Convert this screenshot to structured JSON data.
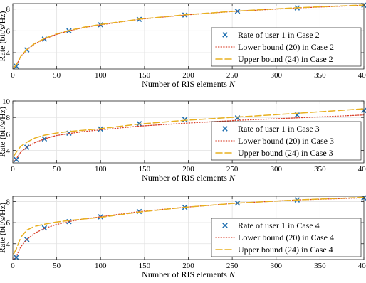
{
  "chart_data": [
    {
      "type": "line",
      "xlabel": "Number of RIS elements",
      "xlabel_var": "N",
      "ylabel": "Rate (bit/s/Hz)",
      "xlim": [
        0,
        400
      ],
      "ylim": [
        2.5,
        8.5
      ],
      "xticks": [
        0,
        50,
        100,
        150,
        200,
        250,
        300,
        350,
        400
      ],
      "yticks": [
        4,
        6,
        8
      ],
      "grid": true,
      "legend_position": "lower-right",
      "series": [
        {
          "name": "Rate of user 1 in Case 2",
          "style": "marker-x",
          "color": "#1f6fb0",
          "x": [
            4,
            16,
            36,
            64,
            100,
            144,
            196,
            256,
            324,
            400
          ],
          "y": [
            2.75,
            4.25,
            5.25,
            6.0,
            6.55,
            7.05,
            7.45,
            7.8,
            8.1,
            8.35
          ]
        },
        {
          "name": "Lower bound (20) in Case 2",
          "style": "dotted",
          "color": "#d9412b",
          "x": [
            1,
            4,
            9,
            16,
            25,
            36,
            49,
            64,
            81,
            100,
            144,
            196,
            256,
            324,
            400
          ],
          "y": [
            2.55,
            2.85,
            3.6,
            4.25,
            4.8,
            5.25,
            5.65,
            6.0,
            6.3,
            6.55,
            7.05,
            7.45,
            7.8,
            8.1,
            8.35
          ]
        },
        {
          "name": "Upper bound (24) in Case 2",
          "style": "dashed",
          "color": "#e8b020",
          "x": [
            1,
            4,
            9,
            16,
            25,
            36,
            49,
            64,
            81,
            100,
            144,
            196,
            256,
            324,
            400
          ],
          "y": [
            2.6,
            2.9,
            3.65,
            4.3,
            4.85,
            5.3,
            5.7,
            6.03,
            6.33,
            6.58,
            7.07,
            7.47,
            7.82,
            8.12,
            8.37
          ]
        }
      ]
    },
    {
      "type": "line",
      "xlabel": "Number of RIS elements",
      "xlabel_var": "N",
      "ylabel": "Rate (bit/s/Hz)",
      "xlim": [
        0,
        400
      ],
      "ylim": [
        2.5,
        10
      ],
      "xticks": [
        0,
        50,
        100,
        150,
        200,
        250,
        300,
        350,
        400
      ],
      "yticks": [
        4,
        6,
        8,
        10
      ],
      "grid": true,
      "legend_position": "lower-right",
      "series": [
        {
          "name": "Rate of user 1 in Case 3",
          "style": "marker-x",
          "color": "#1f6fb0",
          "x": [
            4,
            16,
            36,
            64,
            100,
            144,
            196,
            256,
            324,
            400
          ],
          "y": [
            2.9,
            4.4,
            5.4,
            6.1,
            6.6,
            7.25,
            7.75,
            7.95,
            8.3,
            8.85
          ]
        },
        {
          "name": "Lower bound (20) in Case 3",
          "style": "dotted",
          "color": "#d9412b",
          "x": [
            1,
            4,
            9,
            16,
            25,
            36,
            49,
            64,
            81,
            100,
            144,
            196,
            256,
            324,
            400
          ],
          "y": [
            2.7,
            3.0,
            3.8,
            4.4,
            4.95,
            5.4,
            5.8,
            6.05,
            6.3,
            6.5,
            6.95,
            7.3,
            7.65,
            7.95,
            8.3
          ]
        },
        {
          "name": "Upper bound (24) in Case 3",
          "style": "dashed",
          "color": "#e8b020",
          "x": [
            1,
            4,
            9,
            16,
            25,
            36,
            49,
            64,
            81,
            100,
            144,
            196,
            256,
            324,
            400
          ],
          "y": [
            3.3,
            3.8,
            4.5,
            5.0,
            5.5,
            5.85,
            6.1,
            6.3,
            6.45,
            6.65,
            7.2,
            7.65,
            8.05,
            8.5,
            9.05
          ]
        }
      ]
    },
    {
      "type": "line",
      "xlabel": "Number of RIS elements",
      "xlabel_var": "N",
      "ylabel": "Rate (bit/s/Hz)",
      "xlim": [
        0,
        400
      ],
      "ylim": [
        2.5,
        8.5
      ],
      "xticks": [
        0,
        50,
        100,
        150,
        200,
        250,
        300,
        350,
        400
      ],
      "yticks": [
        4,
        6,
        8
      ],
      "grid": true,
      "legend_position": "lower-right",
      "series": [
        {
          "name": "Rate of user 1 in Case 4",
          "style": "marker-x",
          "color": "#1f6fb0",
          "x": [
            4,
            16,
            36,
            64,
            100,
            144,
            196,
            256,
            324,
            400
          ],
          "y": [
            2.7,
            4.4,
            5.5,
            6.1,
            6.55,
            7.05,
            7.45,
            7.85,
            8.15,
            8.35
          ]
        },
        {
          "name": "Lower bound (20) in Case 4",
          "style": "dotted",
          "color": "#d9412b",
          "x": [
            1,
            4,
            9,
            16,
            25,
            36,
            49,
            64,
            81,
            100,
            144,
            196,
            256,
            324,
            400
          ],
          "y": [
            2.55,
            2.8,
            3.7,
            4.4,
            5.0,
            5.45,
            5.8,
            6.1,
            6.35,
            6.55,
            7.05,
            7.45,
            7.85,
            8.15,
            8.35
          ]
        },
        {
          "name": "Upper bound (24) in Case 4",
          "style": "dashed",
          "color": "#e8b020",
          "x": [
            1,
            4,
            9,
            16,
            25,
            36,
            49,
            64,
            81,
            100,
            144,
            196,
            256,
            324,
            400
          ],
          "y": [
            3.05,
            3.5,
            4.6,
            5.3,
            5.65,
            5.85,
            6.05,
            6.2,
            6.35,
            6.5,
            7.0,
            7.45,
            7.85,
            8.15,
            8.4
          ]
        }
      ]
    }
  ]
}
